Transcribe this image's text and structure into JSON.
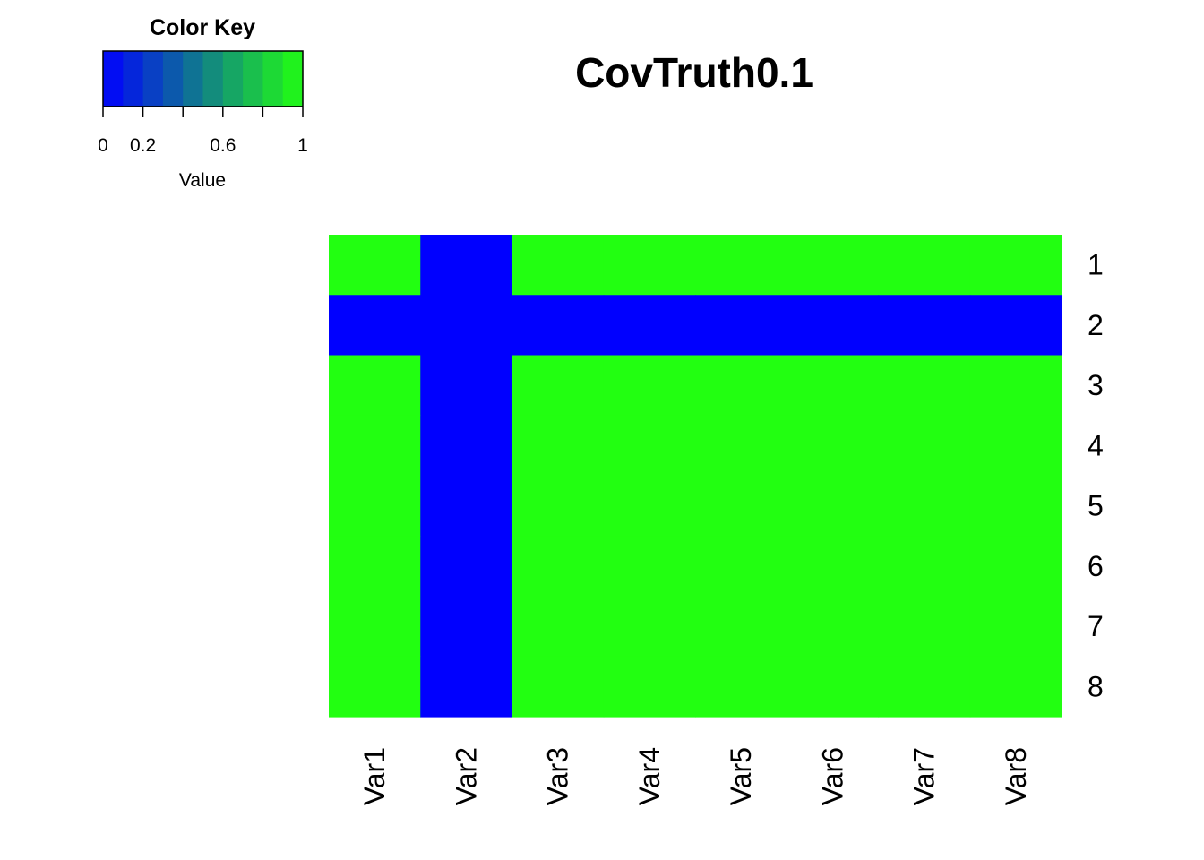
{
  "chart_data": {
    "type": "heatmap",
    "title": "CovTruth0.1",
    "row_labels": [
      "1",
      "2",
      "3",
      "4",
      "5",
      "6",
      "7",
      "8"
    ],
    "col_labels": [
      "Var1",
      "Var2",
      "Var3",
      "Var4",
      "Var5",
      "Var6",
      "Var7",
      "Var8"
    ],
    "values": [
      [
        1,
        0,
        1,
        1,
        1,
        1,
        1,
        1
      ],
      [
        0,
        0,
        0,
        0,
        0,
        0,
        0,
        0
      ],
      [
        1,
        0,
        1,
        1,
        1,
        1,
        1,
        1
      ],
      [
        1,
        0,
        1,
        1,
        1,
        1,
        1,
        1
      ],
      [
        1,
        0,
        1,
        1,
        1,
        1,
        1,
        1
      ],
      [
        1,
        0,
        1,
        1,
        1,
        1,
        1,
        1
      ],
      [
        1,
        0,
        1,
        1,
        1,
        1,
        1,
        1
      ],
      [
        1,
        0,
        1,
        1,
        1,
        1,
        1,
        1
      ]
    ],
    "value_range": [
      0,
      1
    ],
    "color_low": "#0000ff",
    "color_high": "#22ff11",
    "color_key": {
      "title": "Color Key",
      "xlabel": "Value",
      "ticks": [
        {
          "value": 0,
          "label": "0"
        },
        {
          "value": 0.2,
          "label": "0.2"
        },
        {
          "value": 0.4,
          "label": ""
        },
        {
          "value": 0.6,
          "label": "0.6"
        },
        {
          "value": 0.8,
          "label": ""
        },
        {
          "value": 1,
          "label": "1"
        }
      ],
      "bins": 10
    }
  }
}
